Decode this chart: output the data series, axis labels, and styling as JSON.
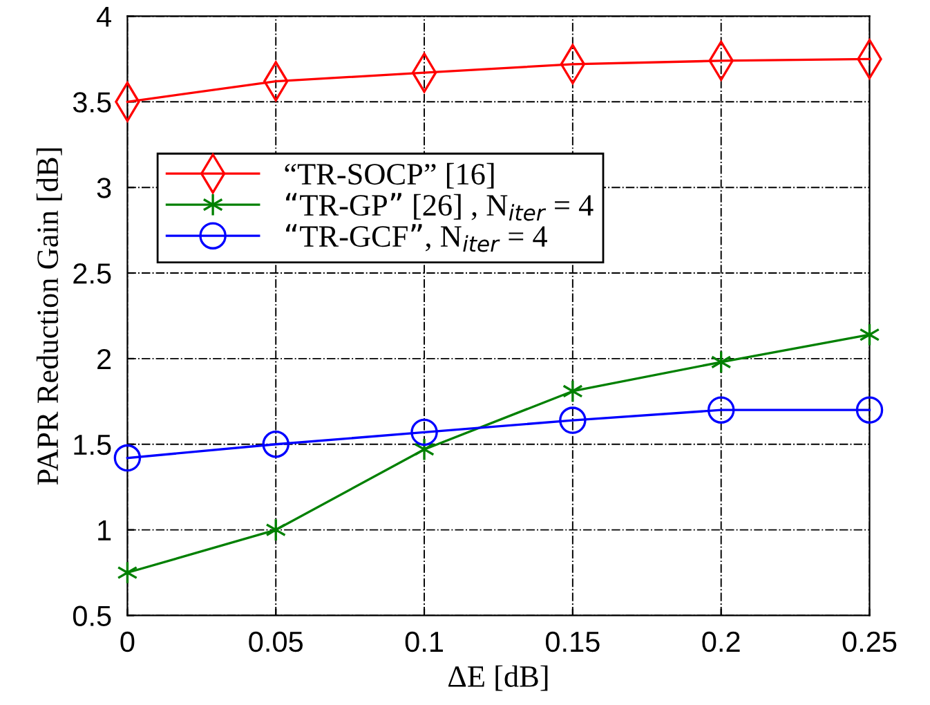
{
  "chart_data": {
    "type": "line",
    "xlabel": "ΔE [dB]",
    "ylabel": "PAPR Reduction Gain [dB]",
    "x": [
      0,
      0.05,
      0.1,
      0.15,
      0.2,
      0.25
    ],
    "series": [
      {
        "name": "“TR-SOCP” [16]",
        "color": "#ff0000",
        "marker": "diamond",
        "values": [
          3.5,
          3.62,
          3.67,
          3.72,
          3.74,
          3.75
        ]
      },
      {
        "name": "“TR-GP” [26] , N$_{iter}$ = 4",
        "color": "#008000",
        "marker": "cross",
        "values": [
          0.75,
          1.0,
          1.47,
          1.81,
          1.98,
          2.14
        ]
      },
      {
        "name": "“TR-GCF”, N$_{iter}$ = 4",
        "color": "#0000ff",
        "marker": "circle",
        "values": [
          1.42,
          1.5,
          1.57,
          1.64,
          1.7,
          1.7
        ]
      }
    ],
    "xlim": [
      0,
      0.25
    ],
    "xticks": [
      0,
      0.05,
      0.1,
      0.15,
      0.2,
      0.25
    ],
    "ylim": [
      0.5,
      4
    ],
    "yticks": [
      0.5,
      1,
      1.5,
      2,
      2.5,
      3,
      3.5,
      4
    ],
    "grid": true,
    "legend": "center left",
    "line_style": "solid"
  }
}
